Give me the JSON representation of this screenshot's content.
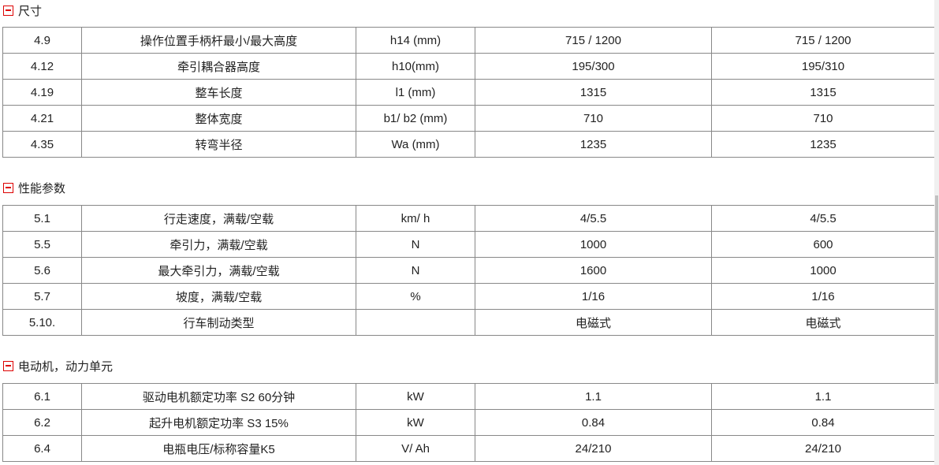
{
  "sections": [
    {
      "title": "尺寸",
      "rows": [
        [
          "4.9",
          "操作位置手柄杆最小/最大高度",
          "h14 (mm)",
          "715 / 1200",
          "715 / 1200"
        ],
        [
          "4.12",
          "牵引耦合器高度",
          "h10(mm)",
          "195/300",
          "195/310"
        ],
        [
          "4.19",
          "整车长度",
          "l1 (mm)",
          "1315",
          "1315"
        ],
        [
          "4.21",
          "整体宽度",
          "b1/ b2 (mm)",
          "710",
          "710"
        ],
        [
          "4.35",
          "转弯半径",
          "Wa (mm)",
          "1235",
          "1235"
        ]
      ]
    },
    {
      "title": "性能参数",
      "rows": [
        [
          "5.1",
          "行走速度，满载/空载",
          "km/ h",
          "4/5.5",
          "4/5.5"
        ],
        [
          "5.5",
          "牵引力，满载/空载",
          "N",
          "1000",
          "600"
        ],
        [
          "5.6",
          "最大牵引力，满载/空载",
          "N",
          "1600",
          "1000"
        ],
        [
          "5.7",
          "坡度，满载/空载",
          "%",
          "1/16",
          "1/16"
        ],
        [
          "5.10.",
          "行车制动类型",
          "",
          "电磁式",
          "电磁式"
        ]
      ]
    },
    {
      "title": "电动机，动力单元",
      "rows": [
        [
          "6.1",
          "驱动电机额定功率 S2 60分钟",
          "kW",
          "1.1",
          "1.1"
        ],
        [
          "6.2",
          "起升电机额定功率 S3 15%",
          "kW",
          "0.84",
          "0.84"
        ],
        [
          "6.4",
          "电瓶电压/标称容量K5",
          "V/ Ah",
          "24/210",
          "24/210"
        ]
      ]
    }
  ],
  "colors": {
    "toggle": "#dd0000",
    "border": "#888888"
  },
  "icons": {
    "toggle": "collapse-minus-icon"
  }
}
